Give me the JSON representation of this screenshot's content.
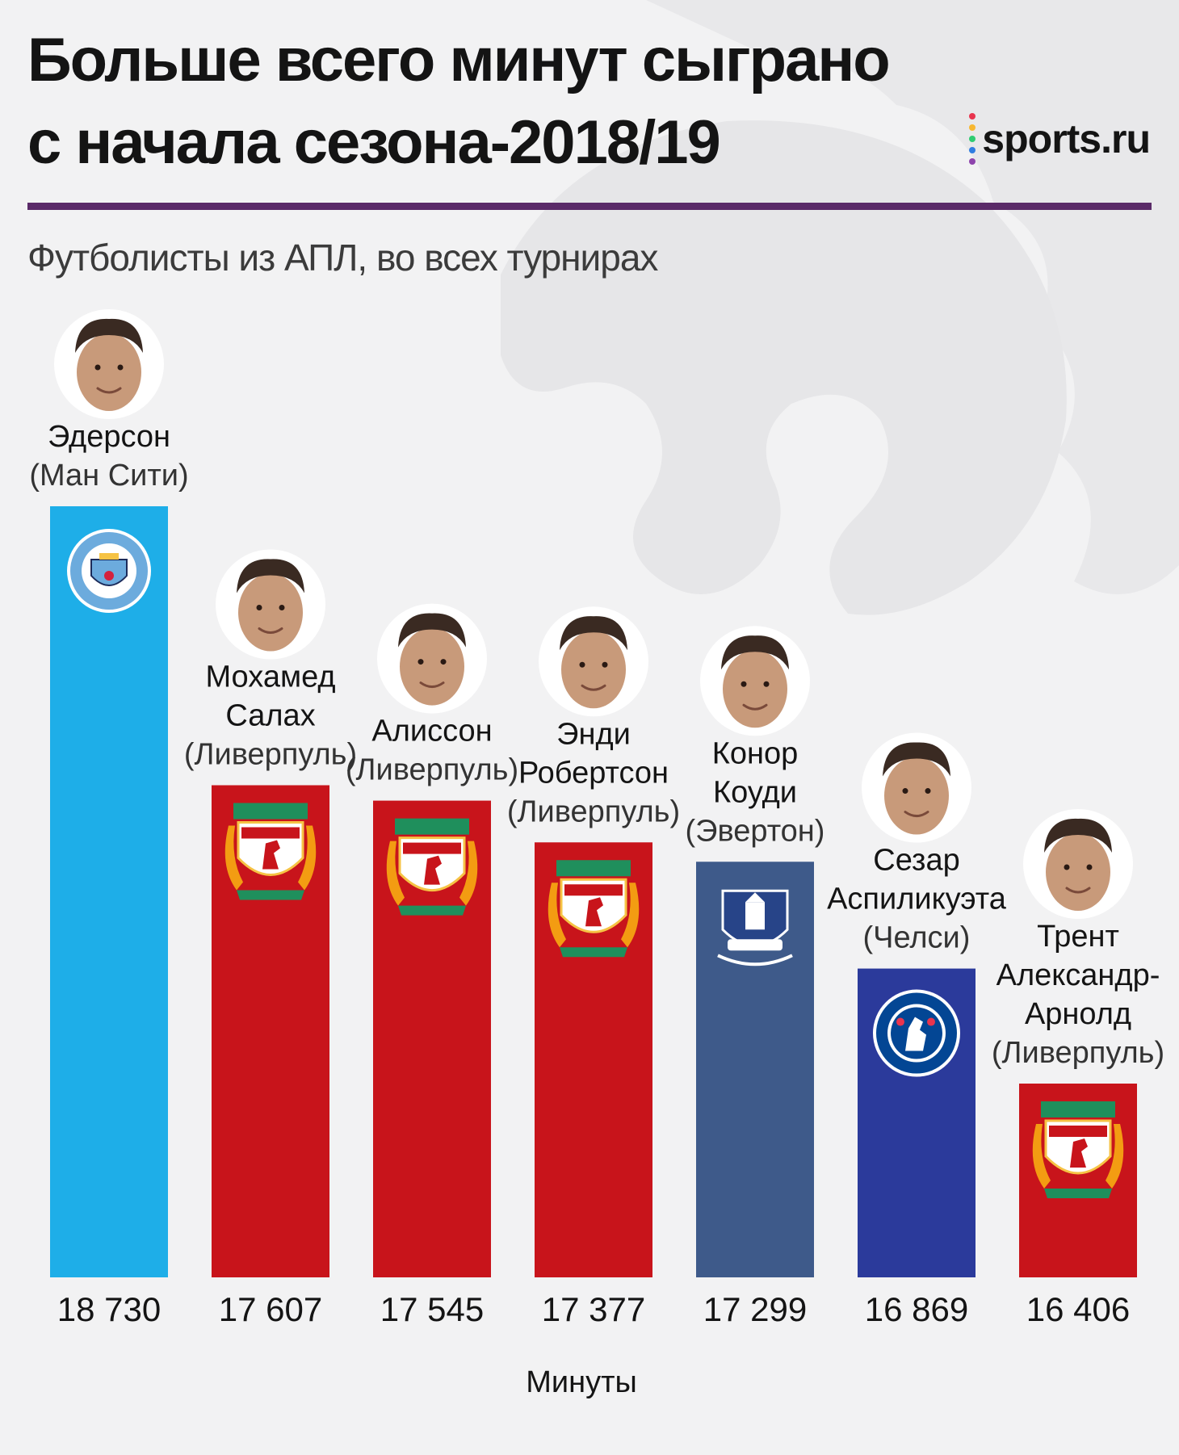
{
  "header": {
    "title_lines": [
      "Больше всего минут сыграно",
      "с начала сезона-2018/19"
    ],
    "brand": "sports.ru",
    "subtitle": "Футболисты из АПЛ, во всех турнирах"
  },
  "colors": {
    "man_city": "#1eaee8",
    "liverpool": "#c8141b",
    "everton": "#3e5a8a",
    "chelsea": "#2b3a9b",
    "divider": "#5a2a68",
    "brand_dots": [
      "#e8344e",
      "#f7b731",
      "#2ecc71",
      "#2f7de1",
      "#8e44ad"
    ]
  },
  "icons": {
    "avatar": "player-avatar-icon",
    "man_city": "man-city-crest-icon",
    "liverpool": "liverpool-crest-icon",
    "everton": "everton-crest-icon",
    "chelsea": "chelsea-crest-icon",
    "watermark": "premier-league-lion-icon"
  },
  "chart_data": {
    "type": "bar",
    "xlabel": "Минуты",
    "ylim": [
      0,
      18730
    ],
    "grid": false,
    "categories": [
      [
        "Эдерсон"
      ],
      [
        "Мохамед",
        "Салах"
      ],
      [
        "Алиссон"
      ],
      [
        "Энди",
        "Робертсон"
      ],
      [
        "Конор",
        "Коуди"
      ],
      [
        "Сезар",
        "Аспиликуэта"
      ],
      [
        "Трент",
        "Александр-",
        "Арнолд"
      ]
    ],
    "clubs": [
      "(Ман Сити)",
      "(Ливерпуль)",
      "(Ливерпуль)",
      "(Ливерпуль)",
      "(Эвертон)",
      "(Челси)",
      "(Ливерпуль)"
    ],
    "club_keys": [
      "man_city",
      "liverpool",
      "liverpool",
      "liverpool",
      "everton",
      "chelsea",
      "liverpool"
    ],
    "values": [
      18730,
      17607,
      17545,
      17377,
      17299,
      16869,
      16406
    ],
    "value_labels": [
      "18 730",
      "17 607",
      "17 545",
      "17 377",
      "17 299",
      "16 869",
      "16 406"
    ]
  }
}
